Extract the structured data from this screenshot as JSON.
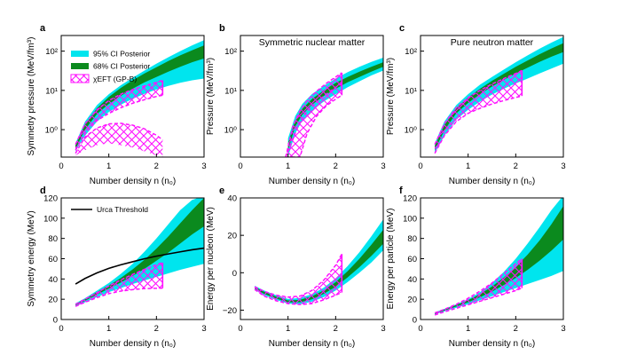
{
  "figure": {
    "legend_left": [
      {
        "label": "95% CI Posterior",
        "color": "#00e5ee",
        "kind": "fill"
      },
      {
        "label": "68% CI Posterior",
        "color": "#0b8a1e",
        "kind": "fill"
      },
      {
        "label": "χEFT (GP-B)",
        "color": "#ff10ff",
        "kind": "hatch"
      }
    ],
    "legend_urca": {
      "label": "Urca Threshold",
      "color": "#000000"
    },
    "colors": {
      "ci95": "#00e5ee",
      "ci68": "#0b8a1e",
      "chieft": "#ff10ff",
      "urca": "#000000"
    }
  },
  "chart_data": [
    {
      "id": "a",
      "letter": "a",
      "type": "area",
      "title": "",
      "xlabel": "Number density n (n₀)",
      "ylabel": "Symmetry pressure (MeV/fm³)",
      "xlim": [
        0,
        3
      ],
      "ylim": [
        0.2,
        250
      ],
      "yscale": "log",
      "xticks": [
        "0",
        "1",
        "2",
        "3"
      ],
      "yticks": [
        "10⁰",
        "10¹",
        "10²"
      ],
      "x": [
        0.3,
        0.5,
        0.75,
        1.0,
        1.25,
        1.5,
        1.75,
        2.0,
        2.25,
        2.5,
        2.75,
        3.0
      ],
      "ci95": {
        "lower": [
          0.28,
          0.7,
          1.6,
          2.8,
          4.3,
          6.1,
          8.2,
          10.5,
          13.0,
          15.6,
          18.0,
          20.0
        ],
        "upper": [
          0.45,
          1.6,
          4.2,
          8.0,
          13.5,
          21.0,
          32.0,
          48.0,
          70.0,
          100.0,
          140.0,
          190.0
        ]
      },
      "ci68": {
        "lower": [
          0.32,
          1.0,
          2.5,
          4.5,
          7.2,
          11.0,
          16.0,
          22.0,
          30.0,
          40.0,
          52.0,
          65.0
        ],
        "upper": [
          0.4,
          1.35,
          3.5,
          6.8,
          11.5,
          18.0,
          27.0,
          39.0,
          56.0,
          78.0,
          105.0,
          140.0
        ]
      },
      "chieft": {
        "x": [
          0.3,
          0.5,
          0.75,
          1.0,
          1.25,
          1.5,
          1.75,
          2.0,
          2.13
        ],
        "upper": [
          0.42,
          1.4,
          3.2,
          5.5,
          8.0,
          10.5,
          13.0,
          16.0,
          18.0
        ],
        "lower": [
          0.3,
          0.8,
          1.7,
          2.6,
          3.6,
          4.7,
          5.8,
          7.0,
          7.5
        ],
        "inner_upper": [
          0.25,
          0.65,
          1.1,
          1.4,
          1.45,
          1.3,
          1.05,
          0.72,
          0.55
        ],
        "inner_lower": [
          0.22,
          0.3,
          0.4,
          0.45,
          0.4,
          0.35,
          0.28,
          0.22,
          0.2
        ]
      }
    },
    {
      "id": "b",
      "letter": "b",
      "type": "area",
      "title": "Symmetric nuclear matter",
      "xlabel": "Number density n (n₀)",
      "ylabel": "Pressure (MeV/fm³)",
      "xlim": [
        0,
        3
      ],
      "ylim": [
        0.2,
        250
      ],
      "yscale": "log",
      "xticks": [
        "0",
        "1",
        "2",
        "3"
      ],
      "yticks": [
        "10⁰",
        "10¹",
        "10²"
      ],
      "x": [
        1.0,
        1.15,
        1.3,
        1.5,
        1.75,
        2.0,
        2.25,
        2.5,
        2.75,
        3.0
      ],
      "ci95": {
        "lower": [
          0.2,
          0.8,
          1.7,
          3.0,
          5.2,
          8.0,
          12.0,
          17.0,
          24.0,
          32.0
        ],
        "upper": [
          0.6,
          2.2,
          4.5,
          8.0,
          13.0,
          20.0,
          29.0,
          40.0,
          53.0,
          68.0
        ]
      },
      "ci68": {
        "lower": [
          0.3,
          1.2,
          2.4,
          4.3,
          7.2,
          11.0,
          16.0,
          22.0,
          30.0,
          40.0
        ],
        "upper": [
          0.45,
          1.7,
          3.4,
          6.0,
          10.0,
          15.5,
          22.0,
          30.0,
          40.0,
          52.0
        ]
      },
      "chieft": {
        "x": [
          0.95,
          1.1,
          1.25,
          1.4,
          1.6,
          1.8,
          2.0,
          2.13
        ],
        "upper": [
          0.2,
          1.2,
          3.0,
          5.5,
          9.5,
          15.0,
          22.0,
          28.0
        ],
        "lower": [
          0.2,
          0.2,
          0.2,
          0.8,
          2.2,
          4.0,
          6.0,
          7.5
        ],
        "center": [
          0.2,
          0.55,
          1.6,
          3.0,
          5.0,
          8.0,
          12.0,
          15.0
        ]
      }
    },
    {
      "id": "c",
      "letter": "c",
      "type": "area",
      "title": "Pure neutron matter",
      "xlabel": "Number density n (n₀)",
      "ylabel": "Pressure (MeV/fm³)",
      "xlim": [
        0,
        3
      ],
      "ylim": [
        0.2,
        250
      ],
      "yscale": "log",
      "xticks": [
        "0",
        "1",
        "2",
        "3"
      ],
      "yticks": [
        "10⁰",
        "10¹",
        "10²"
      ],
      "x": [
        0.3,
        0.5,
        0.75,
        1.0,
        1.25,
        1.5,
        1.75,
        2.0,
        2.25,
        2.5,
        2.75,
        3.0
      ],
      "ci95": {
        "lower": [
          0.25,
          0.7,
          1.8,
          3.2,
          5.2,
          7.8,
          11.0,
          15.0,
          20.0,
          27.0,
          36.0,
          48.0
        ],
        "upper": [
          0.45,
          1.6,
          4.2,
          8.0,
          14.0,
          22.0,
          34.0,
          52.0,
          78.0,
          115.0,
          165.0,
          230.0
        ]
      },
      "ci68": {
        "lower": [
          0.3,
          0.95,
          2.6,
          4.8,
          8.0,
          12.5,
          18.5,
          27.0,
          38.0,
          53.0,
          72.0,
          95.0
        ],
        "upper": [
          0.38,
          1.3,
          3.5,
          6.6,
          11.0,
          17.5,
          26.5,
          40.0,
          58.0,
          83.0,
          117.0,
          160.0
        ]
      },
      "chieft": {
        "x": [
          0.3,
          0.5,
          0.75,
          1.0,
          1.25,
          1.5,
          1.75,
          2.0,
          2.13
        ],
        "upper": [
          0.42,
          1.4,
          3.6,
          6.5,
          10.0,
          14.5,
          20.0,
          27.0,
          32.0
        ],
        "lower": [
          0.25,
          0.7,
          1.6,
          2.6,
          3.5,
          4.5,
          5.5,
          6.6,
          7.2
        ]
      }
    },
    {
      "id": "d",
      "letter": "d",
      "type": "area",
      "title": "",
      "xlabel": "Number density n (n₀)",
      "ylabel": "Symmetry energy (MeV)",
      "xlim": [
        0,
        3
      ],
      "ylim": [
        0,
        120
      ],
      "yscale": "linear",
      "xticks": [
        "0",
        "1",
        "2",
        "3"
      ],
      "yticks": [
        "0",
        "20",
        "40",
        "60",
        "80",
        "100",
        "120"
      ],
      "x": [
        0.3,
        0.5,
        0.75,
        1.0,
        1.25,
        1.5,
        1.75,
        2.0,
        2.25,
        2.5,
        2.75,
        3.0
      ],
      "ci95": {
        "lower": [
          13.0,
          17.0,
          22.0,
          27.0,
          31.0,
          35.0,
          38.5,
          42.0,
          45.5,
          49.0,
          52.0,
          55.0
        ],
        "upper": [
          16.0,
          21.0,
          28.5,
          36.0,
          45.0,
          55.0,
          67.0,
          80.0,
          94.0,
          108.0,
          118.0,
          122.0
        ]
      },
      "ci68": {
        "lower": [
          14.0,
          18.5,
          24.5,
          30.5,
          36.5,
          43.0,
          50.0,
          58.0,
          66.0,
          75.0,
          84.0,
          92.0
        ],
        "upper": [
          15.0,
          20.0,
          27.0,
          33.5,
          41.0,
          49.5,
          59.0,
          70.0,
          82.0,
          95.0,
          108.0,
          120.0
        ]
      },
      "urca": {
        "x": [
          0.3,
          0.5,
          0.75,
          1.0,
          1.25,
          1.5,
          1.75,
          2.0,
          2.25,
          2.5,
          2.75,
          3.0
        ],
        "y": [
          35.0,
          40.5,
          46.0,
          50.5,
          54.0,
          57.0,
          60.0,
          62.5,
          64.7,
          66.8,
          68.8,
          70.5
        ]
      },
      "chieft": {
        "x": [
          0.3,
          0.5,
          0.75,
          1.0,
          1.25,
          1.5,
          1.75,
          2.0,
          2.13
        ],
        "upper": [
          15.0,
          20.0,
          26.5,
          33.0,
          39.0,
          44.5,
          49.5,
          54.0,
          56.0
        ],
        "lower": [
          13.0,
          17.0,
          21.5,
          25.5,
          28.0,
          29.5,
          30.5,
          30.8,
          31.0
        ]
      }
    },
    {
      "id": "e",
      "letter": "e",
      "type": "area",
      "title": "",
      "xlabel": "Number density n (n₀)",
      "ylabel": "Energy per nucleon (MeV)",
      "xlim": [
        0,
        3
      ],
      "ylim": [
        -25,
        40
      ],
      "yscale": "linear",
      "xticks": [
        "0",
        "1",
        "2",
        "3"
      ],
      "yticks": [
        "−20",
        "0",
        "20",
        "40"
      ],
      "x": [
        0.3,
        0.5,
        0.75,
        1.0,
        1.25,
        1.5,
        1.75,
        2.0,
        2.25,
        2.5,
        2.75,
        3.0
      ],
      "ci95": {
        "lower": [
          -9.0,
          -12.0,
          -14.5,
          -16.5,
          -16.8,
          -15.5,
          -13.0,
          -9.5,
          -5.0,
          0.0,
          5.5,
          12.0
        ],
        "upper": [
          -7.0,
          -9.5,
          -12.0,
          -14.0,
          -13.5,
          -11.5,
          -8.0,
          -3.0,
          3.5,
          11.0,
          19.5,
          28.5
        ]
      },
      "ci68": {
        "lower": [
          -8.5,
          -11.3,
          -13.8,
          -15.8,
          -15.8,
          -14.2,
          -11.3,
          -7.5,
          -2.5,
          3.0,
          9.0,
          15.5
        ],
        "upper": [
          -7.6,
          -10.2,
          -12.8,
          -14.8,
          -14.5,
          -12.6,
          -9.4,
          -5.0,
          0.8,
          7.5,
          15.0,
          23.0
        ]
      },
      "chieft": {
        "x": [
          0.3,
          0.5,
          0.75,
          1.0,
          1.25,
          1.5,
          1.75,
          2.0,
          2.13
        ],
        "upper": [
          -7.5,
          -10.0,
          -12.0,
          -13.0,
          -12.5,
          -9.5,
          -4.0,
          4.0,
          10.0
        ],
        "lower": [
          -9.0,
          -12.5,
          -15.0,
          -16.5,
          -17.0,
          -16.5,
          -14.5,
          -12.0,
          -10.5
        ]
      }
    },
    {
      "id": "f",
      "letter": "f",
      "type": "area",
      "title": "",
      "xlabel": "Number density n (n₀)",
      "ylabel": "Energy per particle (MeV)",
      "xlim": [
        0,
        3
      ],
      "ylim": [
        0,
        120
      ],
      "yscale": "linear",
      "xticks": [
        "0",
        "1",
        "2",
        "3"
      ],
      "yticks": [
        "0",
        "20",
        "40",
        "60",
        "80",
        "100",
        "120"
      ],
      "x": [
        0.3,
        0.5,
        0.75,
        1.0,
        1.25,
        1.5,
        1.75,
        2.0,
        2.25,
        2.5,
        2.75,
        3.0
      ],
      "ci95": {
        "lower": [
          5.0,
          8.0,
          11.5,
          15.0,
          19.0,
          23.0,
          27.0,
          31.0,
          35.0,
          39.0,
          43.0,
          48.0
        ],
        "upper": [
          7.0,
          10.5,
          15.0,
          20.0,
          27.0,
          36.0,
          47.0,
          60.0,
          75.0,
          91.0,
          108.0,
          124.0
        ]
      },
      "ci68": {
        "lower": [
          5.5,
          8.8,
          12.8,
          17.0,
          22.0,
          27.5,
          34.0,
          41.0,
          49.0,
          58.0,
          68.0,
          79.0
        ],
        "upper": [
          6.5,
          9.8,
          14.2,
          19.0,
          25.0,
          32.5,
          41.5,
          52.0,
          64.0,
          78.0,
          94.0,
          112.0
        ]
      },
      "chieft": {
        "x": [
          0.3,
          0.5,
          0.75,
          1.0,
          1.25,
          1.5,
          1.75,
          2.0,
          2.13
        ],
        "upper": [
          6.5,
          10.0,
          15.0,
          21.0,
          28.0,
          36.0,
          45.5,
          55.0,
          60.0
        ],
        "lower": [
          4.5,
          7.5,
          11.0,
          14.5,
          18.0,
          21.5,
          25.0,
          28.5,
          31.0
        ]
      }
    }
  ]
}
